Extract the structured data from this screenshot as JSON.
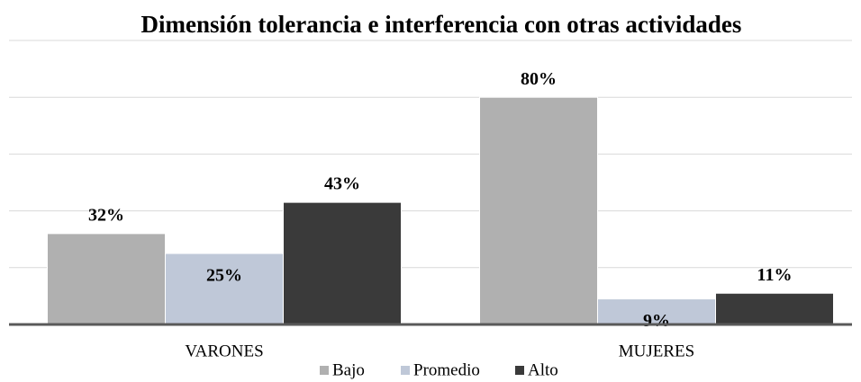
{
  "chart_data": {
    "type": "bar",
    "title": "Dimensión tolerancia e interferencia con otras actividades",
    "categories": [
      "VARONES",
      "MUJERES"
    ],
    "series": [
      {
        "name": "Bajo",
        "color": "#b0b0b0",
        "values": [
          32,
          80
        ],
        "value_labels": [
          "32%",
          "80%"
        ]
      },
      {
        "name": "Promedio",
        "color": "#bfc8d8",
        "values": [
          25,
          9
        ],
        "value_labels": [
          "25%",
          "9%"
        ]
      },
      {
        "name": "Alto",
        "color": "#3a3a3a",
        "values": [
          43,
          11
        ],
        "value_labels": [
          "43%",
          "11%"
        ]
      }
    ],
    "ylim": [
      0,
      100
    ],
    "yticks": [
      0,
      20,
      40,
      60,
      80,
      100
    ],
    "grid": true,
    "legend": "bottom"
  }
}
